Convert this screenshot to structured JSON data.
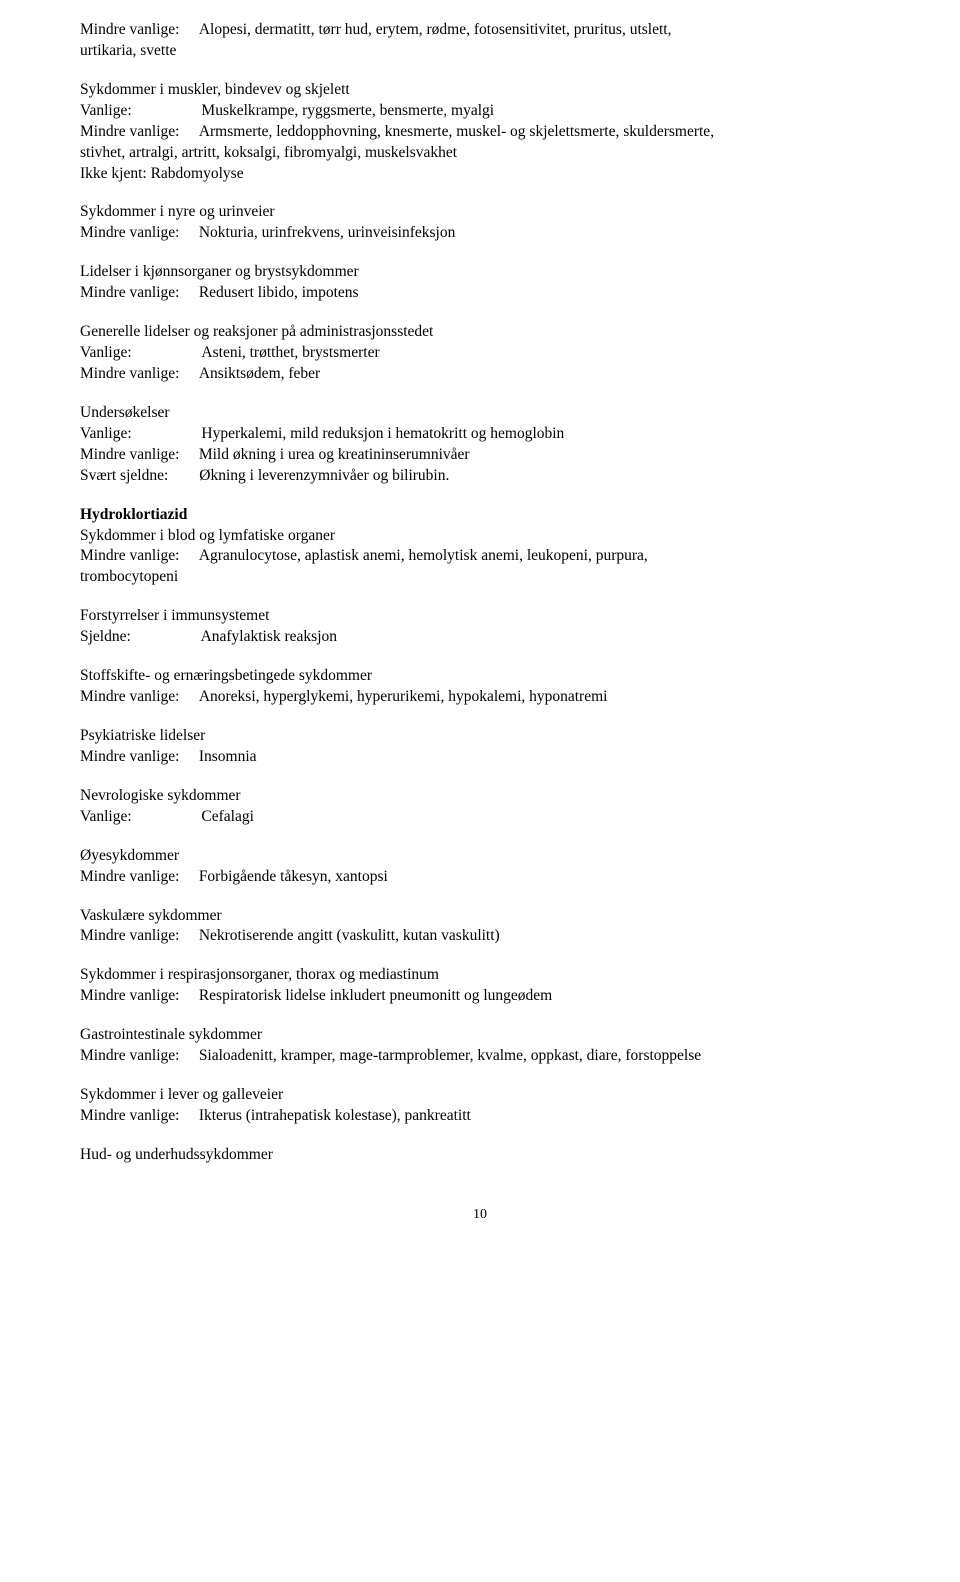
{
  "freq": {
    "mindre_vanlige": "Mindre vanlige:",
    "vanlige": "Vanlige:",
    "ikke_kjent": "Ikke kjent:",
    "sjeldne": "Sjeldne:",
    "svaert_sjeldne": "Svært sjeldne:"
  },
  "sec1": {
    "line1": "Alopesi, dermatitt, tørr hud, erytem, rødme, fotosensitivitet, pruritus, utslett,",
    "line2": "urtikaria, svette"
  },
  "sec2": {
    "title": "Sykdommer i muskler, bindevev og skjelett",
    "vanlige_val": "Muskelkrampe, ryggsmerte, bensmerte, myalgi",
    "mindre_val_line1": "Armsmerte, leddopphovning, knesmerte, muskel- og skjelettsmerte, skuldersmerte,",
    "mindre_val_line2": "stivhet, artralgi, artritt, koksalgi, fibromyalgi, muskelsvakhet",
    "ikke_kjent_val": "Ikke kjent: Rabdomyolyse"
  },
  "sec3": {
    "title": "Sykdommer i nyre og urinveier",
    "mindre_val": "Nokturia, urinfrekvens, urinveisinfeksjon"
  },
  "sec4": {
    "title": "Lidelser i kjønnsorganer og brystsykdommer",
    "mindre_val": "Redusert libido, impotens"
  },
  "sec5": {
    "title": "Generelle lidelser og reaksjoner på administrasjonsstedet",
    "vanlige_val": "Asteni, trøtthet, brystsmerter",
    "mindre_val": "Ansiktsødem, feber"
  },
  "sec6": {
    "title": "Undersøkelser",
    "vanlige_val": "Hyperkalemi, mild reduksjon i hematokritt og hemoglobin",
    "mindre_val": "Mild økning i urea og kreatininserumnivåer",
    "svaert_val": "Økning i leverenzymnivåer og bilirubin."
  },
  "hydro_title": "Hydroklortiazid",
  "sec7": {
    "title": "Sykdommer i blod og lymfatiske organer",
    "mindre_line1": "Agranulocytose, aplastisk anemi, hemolytisk anemi, leukopeni, purpura,",
    "mindre_line2": "trombocytopeni"
  },
  "sec8": {
    "title": "Forstyrrelser i immunsystemet",
    "sjeldne_val": "Anafylaktisk reaksjon"
  },
  "sec9": {
    "title": "Stoffskifte- og ernæringsbetingede sykdommer",
    "mindre_val": "Anoreksi, hyperglykemi, hyperurikemi, hypokalemi, hyponatremi"
  },
  "sec10": {
    "title": "Psykiatriske lidelser",
    "mindre_val": "Insomnia"
  },
  "sec11": {
    "title": "Nevrologiske sykdommer",
    "vanlige_val": "Cefalagi"
  },
  "sec12": {
    "title": "Øyesykdommer",
    "mindre_val": "Forbigående tåkesyn, xantopsi"
  },
  "sec13": {
    "title": "Vaskulære sykdommer",
    "mindre_val": "Nekrotiserende angitt (vaskulitt, kutan vaskulitt)"
  },
  "sec14": {
    "title": "Sykdommer i respirasjonsorganer, thorax og mediastinum",
    "mindre_val": "Respiratorisk lidelse inkludert pneumonitt og lungeødem"
  },
  "sec15": {
    "title": "Gastrointestinale sykdommer",
    "mindre_val": "Sialoadenitt, kramper, mage-tarmproblemer, kvalme, oppkast, diare, forstoppelse"
  },
  "sec16": {
    "title": "Sykdommer i lever og galleveier",
    "mindre_val": "Ikterus (intrahepatisk kolestase), pankreatitt"
  },
  "sec17": {
    "title": "Hud- og underhudssykdommer"
  },
  "page_number": "10"
}
